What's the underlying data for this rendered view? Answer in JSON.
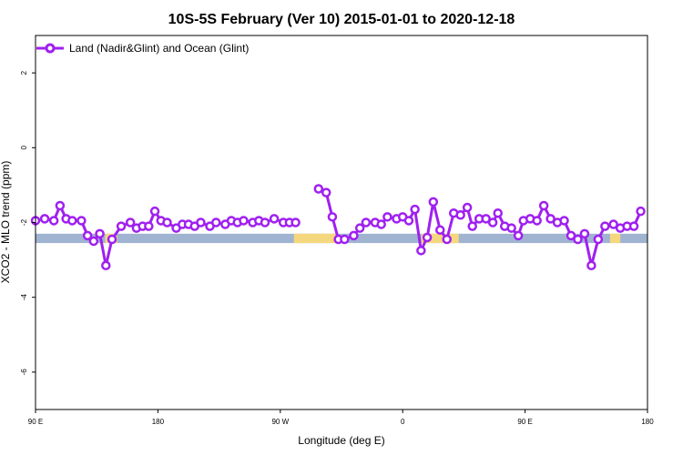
{
  "chart_data": {
    "type": "line",
    "title": "10S-5S February (Ver 10)   2015-01-01 to 2020-12-18",
    "xlabel": "Longitude (deg E)",
    "ylabel": "XCO2 - MLO trend (ppm)",
    "xlim": [
      0,
      360
    ],
    "ylim": [
      -7,
      3
    ],
    "x_ticks": [
      {
        "value": 0,
        "label": "90 E"
      },
      {
        "value": 72,
        "label": "180"
      },
      {
        "value": 144,
        "label": "90 W"
      },
      {
        "value": 216,
        "label": "0"
      },
      {
        "value": 288,
        "label": "90 E"
      },
      {
        "value": 360,
        "label": "180"
      }
    ],
    "y_ticks": [
      {
        "value": 2,
        "label": "2"
      },
      {
        "value": 0,
        "label": "0"
      },
      {
        "value": -2,
        "label": "-2"
      },
      {
        "value": -4,
        "label": "-4"
      },
      {
        "value": -6,
        "label": "-6"
      }
    ],
    "legend_position": "top-left",
    "series": [
      {
        "name": "Land (Nadir&Glint) and Ocean (Glint)",
        "color": "#a020f0",
        "segments": [
          [
            [
              0.0,
              -1.95
            ],
            [
              5.4,
              -1.9
            ],
            [
              10.8,
              -1.95
            ],
            [
              14.4,
              -1.55
            ],
            [
              18.0,
              -1.9
            ],
            [
              21.6,
              -1.95
            ],
            [
              27.0,
              -1.95
            ],
            [
              30.6,
              -2.35
            ],
            [
              34.2,
              -2.5
            ],
            [
              37.8,
              -2.3
            ],
            [
              41.4,
              -3.15
            ],
            [
              45.0,
              -2.45
            ],
            [
              50.4,
              -2.1
            ],
            [
              55.8,
              -2.0
            ],
            [
              59.4,
              -2.15
            ],
            [
              63.0,
              -2.1
            ],
            [
              66.6,
              -2.1
            ],
            [
              70.2,
              -1.7
            ],
            [
              73.8,
              -1.95
            ],
            [
              77.4,
              -2.0
            ],
            [
              82.8,
              -2.15
            ],
            [
              86.4,
              -2.05
            ],
            [
              90.0,
              -2.05
            ],
            [
              93.6,
              -2.1
            ],
            [
              97.2,
              -2.0
            ],
            [
              102.6,
              -2.1
            ],
            [
              106.2,
              -2.0
            ],
            [
              111.6,
              -2.05
            ],
            [
              115.2,
              -1.95
            ],
            [
              118.8,
              -2.0
            ],
            [
              122.4,
              -1.95
            ],
            [
              127.8,
              -2.0
            ],
            [
              131.4,
              -1.95
            ],
            [
              135.0,
              -2.0
            ],
            [
              140.4,
              -1.9
            ],
            [
              145.8,
              -2.0
            ],
            [
              149.4,
              -2.0
            ],
            [
              153.0,
              -2.0
            ]
          ],
          [
            [
              166.5,
              -1.1
            ],
            [
              171.0,
              -1.2
            ],
            [
              174.6,
              -1.85
            ],
            [
              178.2,
              -2.45
            ],
            [
              181.8,
              -2.45
            ],
            [
              187.2,
              -2.35
            ],
            [
              190.8,
              -2.15
            ],
            [
              194.4,
              -2.0
            ],
            [
              199.8,
              -2.0
            ],
            [
              203.4,
              -2.05
            ],
            [
              207.0,
              -1.85
            ],
            [
              212.4,
              -1.9
            ],
            [
              216.0,
              -1.85
            ],
            [
              219.6,
              -1.95
            ],
            [
              223.2,
              -1.65
            ],
            [
              226.8,
              -2.75
            ],
            [
              230.4,
              -2.4
            ],
            [
              234.0,
              -1.45
            ],
            [
              238.0,
              -2.2
            ],
            [
              242.0,
              -2.45
            ],
            [
              246.0,
              -1.75
            ],
            [
              250.0,
              -1.8
            ],
            [
              254.0,
              -1.6
            ],
            [
              257.0,
              -2.1
            ],
            [
              261.0,
              -1.9
            ],
            [
              265.0,
              -1.9
            ],
            [
              269.0,
              -2.0
            ],
            [
              272.0,
              -1.75
            ],
            [
              276.0,
              -2.1
            ],
            [
              280.0,
              -2.15
            ],
            [
              284.0,
              -2.35
            ],
            [
              287.0,
              -1.95
            ],
            [
              291.0,
              -1.9
            ],
            [
              295.0,
              -1.95
            ],
            [
              299.0,
              -1.55
            ],
            [
              303.0,
              -1.9
            ],
            [
              307.0,
              -2.0
            ],
            [
              311.0,
              -1.95
            ],
            [
              315.0,
              -2.35
            ],
            [
              319.0,
              -2.45
            ],
            [
              323.0,
              -2.3
            ],
            [
              327.0,
              -3.15
            ],
            [
              331.0,
              -2.45
            ],
            [
              335.0,
              -2.1
            ],
            [
              340.0,
              -2.05
            ],
            [
              344.0,
              -2.15
            ],
            [
              348.0,
              -2.1
            ],
            [
              352.0,
              -2.1
            ],
            [
              356.0,
              -1.7
            ]
          ]
        ]
      }
    ],
    "land_strip": {
      "y_range": [
        -2.55,
        -2.3
      ],
      "ocean_color": "#a0b4d2",
      "land_color": "#f5d77e",
      "land_ranges": [
        [
          41,
          48
        ],
        [
          152,
          178
        ],
        [
          227,
          249
        ],
        [
          338,
          344
        ]
      ]
    }
  }
}
